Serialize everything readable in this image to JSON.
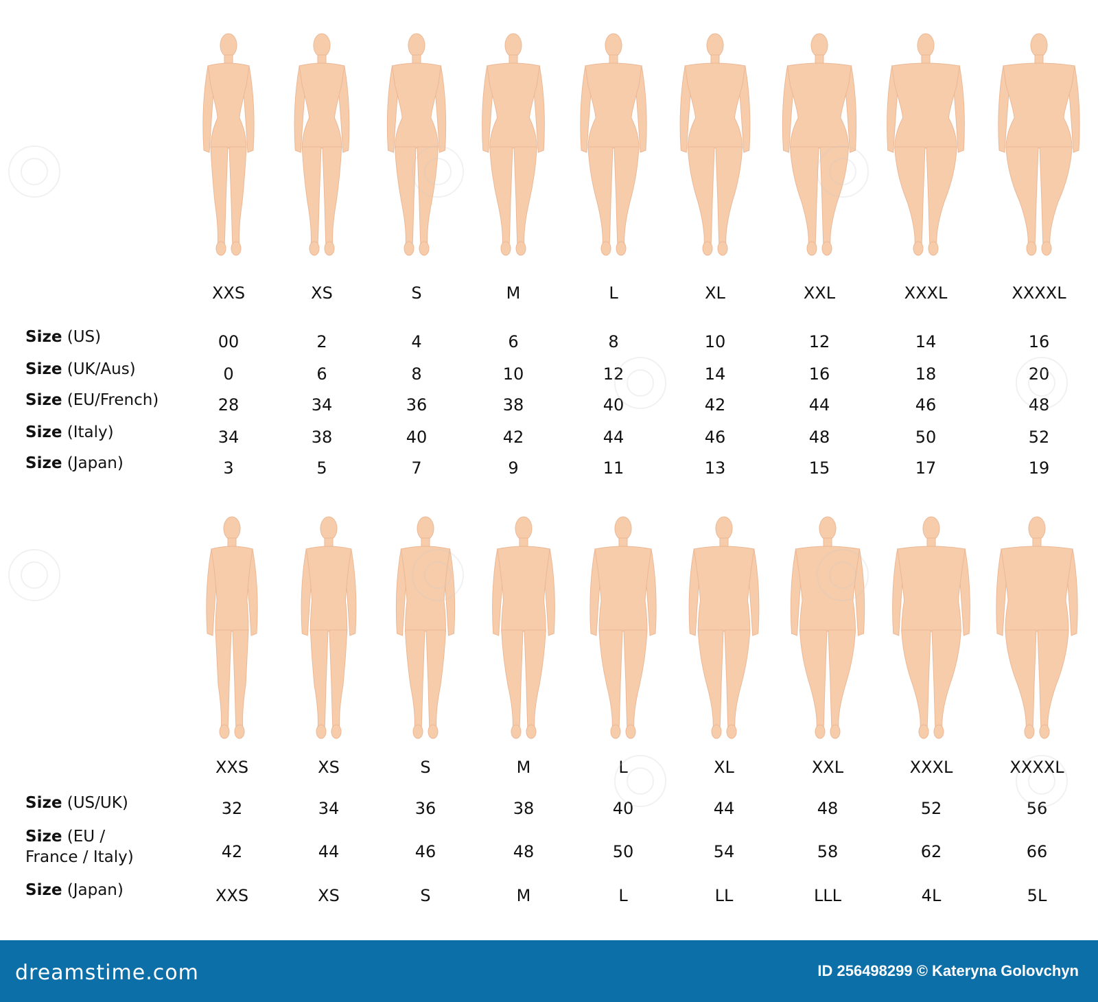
{
  "colors": {
    "skin": "#f7ccab",
    "skin_line": "#ebb896",
    "footer_bg": "#0d6fa8"
  },
  "women": {
    "sizes": [
      "XXS",
      "XS",
      "S",
      "M",
      "L",
      "XL",
      "XXL",
      "XXXL",
      "XXXXL"
    ],
    "rows": [
      {
        "label_bold": "Size",
        "label_rest": " (US)",
        "values": [
          "00",
          "2",
          "4",
          "6",
          "8",
          "10",
          "12",
          "14",
          "16"
        ]
      },
      {
        "label_bold": "Size",
        "label_rest": " (UK/Aus)",
        "values": [
          "0",
          "6",
          "8",
          "10",
          "12",
          "14",
          "16",
          "18",
          "20"
        ]
      },
      {
        "label_bold": "Size",
        "label_rest": " (EU/French)",
        "values": [
          "28",
          "34",
          "36",
          "38",
          "40",
          "42",
          "44",
          "46",
          "48"
        ]
      },
      {
        "label_bold": "Size",
        "label_rest": " (Italy)",
        "values": [
          "34",
          "38",
          "40",
          "42",
          "44",
          "46",
          "48",
          "50",
          "52"
        ]
      },
      {
        "label_bold": "Size",
        "label_rest": " (Japan)",
        "values": [
          "3",
          "5",
          "7",
          "9",
          "11",
          "13",
          "15",
          "17",
          "19"
        ]
      }
    ]
  },
  "men": {
    "sizes": [
      "XXS",
      "XS",
      "S",
      "M",
      "L",
      "XL",
      "XXL",
      "XXXL",
      "XXXXL"
    ],
    "rows": [
      {
        "label_bold": "Size",
        "label_rest": " (US/UK)",
        "values": [
          "32",
          "34",
          "36",
          "38",
          "40",
          "44",
          "48",
          "52",
          "56"
        ]
      },
      {
        "label_bold": "Size",
        "label_rest": " (EU /",
        "label_line2": "France / Italy)",
        "values": [
          "42",
          "44",
          "46",
          "48",
          "50",
          "54",
          "58",
          "62",
          "66"
        ]
      },
      {
        "label_bold": "Size",
        "label_rest": " (Japan)",
        "values": [
          "XXS",
          "XS",
          "S",
          "M",
          "L",
          "LL",
          "LLL",
          "4L",
          "5L"
        ]
      }
    ]
  },
  "footer": {
    "logo": "dreamstime.com",
    "credit": "ID 256498299 © Kateryna Golovchyn"
  }
}
